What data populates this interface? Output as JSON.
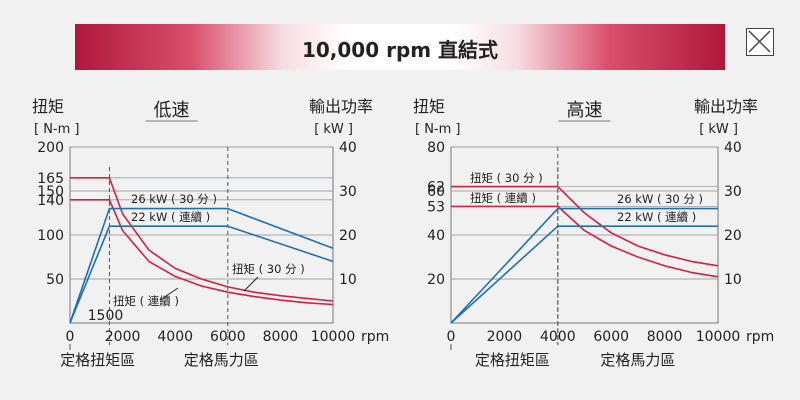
{
  "header": {
    "title": "10,000 rpm 直結式",
    "close_icon": "close-icon"
  },
  "colors": {
    "torque_red": "#d6203f",
    "power_blue": "#1f6fb3",
    "grid": "#9aa0a6",
    "banner_accent": "#b0183a"
  },
  "chart_data": [
    {
      "type": "line",
      "title": "低速",
      "left_axis_title": "扭矩",
      "left_axis_unit": "[ N-m ]",
      "right_axis_title": "輸出功率",
      "right_axis_unit": "[ kW ]",
      "x_unit": "rpm",
      "x_ticks": [
        "0",
        "2000",
        "4000",
        "6000",
        "8000",
        "10000"
      ],
      "xlim": [
        0,
        10000
      ],
      "left_ticks": [
        "200",
        "165",
        "150",
        "140",
        "100",
        "50"
      ],
      "left_tick_values": [
        200,
        165,
        150,
        140,
        100,
        50
      ],
      "ylim_left": [
        0,
        200
      ],
      "right_ticks": [
        "40",
        "30",
        "20",
        "10"
      ],
      "right_tick_values": [
        40,
        30,
        20,
        10
      ],
      "ylim_right": [
        0,
        40
      ],
      "grid": true,
      "extra_xtick_label": "1500",
      "zones": [
        "定格扭矩區",
        "定格馬力區"
      ],
      "series": [
        {
          "name": "扭矩 ( 30 分 )",
          "axis": "left",
          "color": "red",
          "x": [
            0,
            1500,
            2000,
            3000,
            4000,
            5000,
            6000,
            7000,
            8000,
            9000,
            10000
          ],
          "y": [
            165,
            165,
            124,
            83,
            62,
            50,
            41,
            35,
            31,
            28,
            25
          ]
        },
        {
          "name": "扭矩 ( 連續 )",
          "axis": "left",
          "color": "red",
          "x": [
            0,
            1500,
            2000,
            3000,
            4000,
            5000,
            6000,
            7000,
            8000,
            9000,
            10000
          ],
          "y": [
            140,
            140,
            105,
            70,
            53,
            42,
            35,
            30,
            26,
            23,
            21
          ]
        },
        {
          "name": "26 kW ( 30 分 )",
          "axis": "right",
          "color": "blue",
          "x": [
            0,
            1500,
            6000,
            10000
          ],
          "y": [
            0,
            26,
            26,
            17
          ]
        },
        {
          "name": "22 kW ( 連續 )",
          "axis": "right",
          "color": "blue",
          "x": [
            0,
            1500,
            6000,
            10000
          ],
          "y": [
            0,
            22,
            22,
            14
          ]
        }
      ]
    },
    {
      "type": "line",
      "title": "高速",
      "left_axis_title": "扭矩",
      "left_axis_unit": "[ N-m ]",
      "right_axis_title": "輸出功率",
      "right_axis_unit": "[ kW ]",
      "x_unit": "rpm",
      "x_ticks": [
        "0",
        "2000",
        "4000",
        "6000",
        "8000",
        "10000"
      ],
      "xlim": [
        0,
        10000
      ],
      "left_ticks": [
        "80",
        "62",
        "60",
        "53",
        "40",
        "20"
      ],
      "left_tick_values": [
        80,
        62,
        60,
        53,
        40,
        20
      ],
      "ylim_left": [
        0,
        80
      ],
      "right_ticks": [
        "40",
        "30",
        "20",
        "10"
      ],
      "right_tick_values": [
        40,
        30,
        20,
        10
      ],
      "ylim_right": [
        0,
        40
      ],
      "grid": true,
      "zones": [
        "定格扭矩區",
        "定格馬力區"
      ],
      "series": [
        {
          "name": "扭矩 ( 30 分 )",
          "axis": "left",
          "color": "red",
          "x": [
            0,
            4000,
            5000,
            6000,
            7000,
            8000,
            9000,
            10000
          ],
          "y": [
            62,
            62,
            50,
            41,
            35,
            31,
            28,
            26
          ]
        },
        {
          "name": "扭矩 ( 連續 )",
          "axis": "left",
          "color": "red",
          "x": [
            0,
            4000,
            5000,
            6000,
            7000,
            8000,
            9000,
            10000
          ],
          "y": [
            53,
            53,
            42,
            35,
            30,
            26,
            23,
            21
          ]
        },
        {
          "name": "26 kW ( 30 分 )",
          "axis": "right",
          "color": "blue",
          "x": [
            0,
            4000,
            10000
          ],
          "y": [
            0,
            26,
            26
          ]
        },
        {
          "name": "22 kW ( 連續 )",
          "axis": "right",
          "color": "blue",
          "x": [
            0,
            4000,
            10000
          ],
          "y": [
            0,
            22,
            22
          ]
        }
      ]
    }
  ]
}
